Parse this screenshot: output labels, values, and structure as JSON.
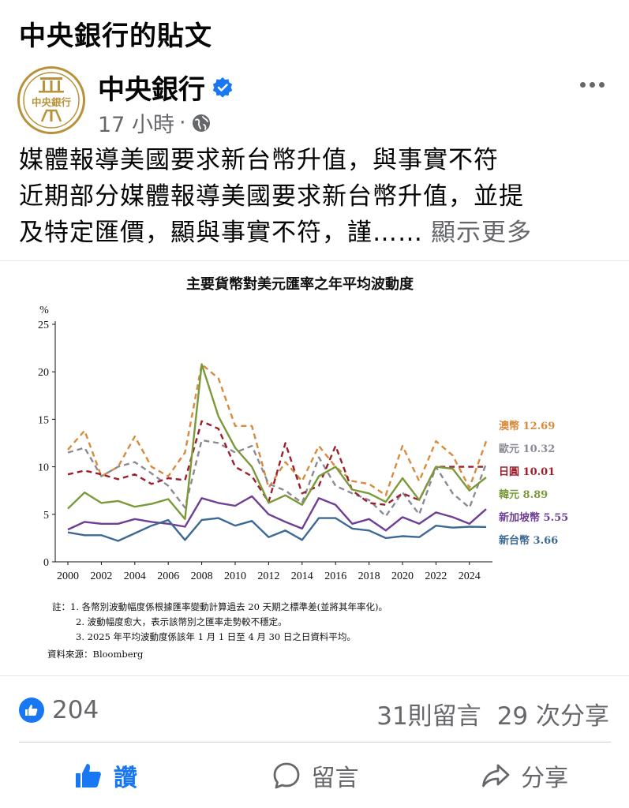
{
  "page_header": "中央銀行的貼文",
  "author": {
    "name": "中央銀行",
    "avatar_text": "中央銀行",
    "verified_icon": "verified-badge-icon",
    "time": "17 小時",
    "separator": "·",
    "audience_icon": "globe-icon"
  },
  "post": {
    "line1": "媒體報導美國要求新台幣升值，與事實不符",
    "line2": "近期部分媒體報導美國要求新台幣升值，並提",
    "line3": "及特定匯價，顯與事實不符，謹……",
    "see_more": "顯示更多"
  },
  "chart_data": {
    "type": "line",
    "title": "主要貨幣對美元匯率之年平均波動度",
    "ylabel": "%",
    "xlabel": "",
    "ylim": [
      0,
      25
    ],
    "yticks": [
      "0",
      "5",
      "10",
      "15",
      "20",
      "25"
    ],
    "xlim": [
      2000,
      2025
    ],
    "xticks": [
      "2000",
      "2002",
      "2004",
      "2006",
      "2008",
      "2010",
      "2012",
      "2014",
      "2016",
      "2018",
      "2020",
      "2022",
      "2024"
    ],
    "x": [
      2000,
      2001,
      2002,
      2003,
      2004,
      2005,
      2006,
      2007,
      2008,
      2009,
      2010,
      2011,
      2012,
      2013,
      2014,
      2015,
      2016,
      2017,
      2018,
      2019,
      2020,
      2021,
      2022,
      2023,
      2024,
      2025
    ],
    "grid": false,
    "series": [
      {
        "name": "澳幣",
        "end_label": "澳幣 12.69",
        "color": "#d98a3d",
        "dash": true,
        "values": [
          11.8,
          13.8,
          9.0,
          10.0,
          13.2,
          10.0,
          9.0,
          11.5,
          20.8,
          19.3,
          14.3,
          14.3,
          7.8,
          10.5,
          8.5,
          12.2,
          10.0,
          8.5,
          8.2,
          7.0,
          12.2,
          8.5,
          12.7,
          11.2,
          7.8,
          12.69
        ]
      },
      {
        "name": "歐元",
        "end_label": "歐元 10.32",
        "color": "#8a8a96",
        "dash": true,
        "values": [
          11.5,
          12.0,
          9.0,
          10.0,
          10.5,
          9.3,
          8.0,
          5.7,
          12.8,
          12.5,
          11.5,
          12.2,
          8.2,
          7.5,
          6.2,
          11.0,
          8.0,
          7.2,
          6.5,
          4.8,
          7.3,
          5.0,
          10.0,
          7.2,
          5.7,
          10.32
        ]
      },
      {
        "name": "日圓",
        "end_label": "日圓 10.01",
        "color": "#9c1f2e",
        "dash": true,
        "values": [
          9.2,
          9.6,
          9.2,
          8.7,
          9.2,
          8.2,
          8.8,
          8.6,
          14.8,
          14.0,
          10.0,
          9.0,
          6.3,
          12.5,
          7.2,
          8.0,
          12.2,
          7.5,
          6.2,
          6.0,
          7.2,
          6.5,
          10.0,
          10.0,
          10.0,
          10.01
        ]
      },
      {
        "name": "韓元",
        "end_label": "韓元 8.89",
        "color": "#7a9a3a",
        "dash": false,
        "values": [
          5.6,
          7.3,
          6.2,
          6.4,
          5.8,
          6.1,
          6.6,
          4.5,
          20.8,
          15.3,
          12.0,
          10.0,
          6.2,
          7.0,
          6.0,
          9.0,
          10.0,
          7.6,
          7.2,
          6.3,
          8.8,
          6.5,
          10.0,
          9.8,
          7.5,
          8.89
        ]
      },
      {
        "name": "新加坡幣",
        "end_label": "新加坡幣 5.55",
        "color": "#6e3f94",
        "dash": false,
        "values": [
          3.4,
          4.2,
          4.0,
          4.0,
          4.5,
          4.2,
          4.0,
          3.7,
          6.7,
          6.2,
          5.9,
          6.9,
          5.0,
          4.2,
          3.5,
          6.7,
          6.0,
          4.0,
          4.5,
          3.3,
          4.7,
          4.0,
          5.2,
          4.7,
          4.0,
          5.55
        ]
      },
      {
        "name": "新台幣",
        "end_label": "新台幣 3.66",
        "color": "#3d6a94",
        "dash": false,
        "values": [
          3.1,
          2.8,
          2.8,
          2.2,
          3.0,
          3.8,
          4.4,
          2.3,
          4.4,
          4.6,
          3.8,
          4.3,
          2.6,
          3.3,
          2.3,
          4.6,
          4.6,
          3.5,
          3.3,
          2.5,
          2.7,
          2.6,
          3.8,
          3.6,
          3.7,
          3.66
        ]
      }
    ],
    "notes": [
      "註：1. 各幣別波動幅度係根據匯率變動計算過去 20 天期之標準差(並將其年率化)。",
      "2. 波動幅度愈大，表示該幣別之匯率走勢較不穩定。",
      "3. 2025 年平均波動度係該年 1 月 1 日至 4 月 30 日之日資料平均。",
      "資料來源：Bloomberg"
    ]
  },
  "stats": {
    "like_icon": "thumbs-up-icon",
    "likes": "204",
    "comments": "31則留言",
    "shares": "29 次分享"
  },
  "actions": {
    "like": "讚",
    "comment": "留言",
    "share": "分享"
  },
  "colors": {
    "accent": "#1877f2",
    "muted_text": "#65676b",
    "brand_gold": "#b8923a"
  }
}
